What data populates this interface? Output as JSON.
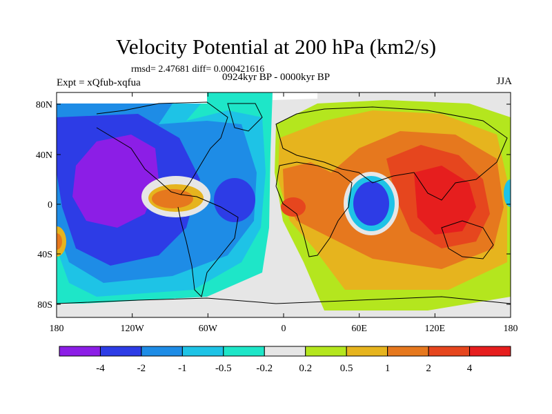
{
  "title": "Velocity Potential at 200 hPa (km2/s)",
  "stats": "rmsd= 2.47681 diff= 0.000421616",
  "experiment": "Expt = xQfub-xqfua",
  "period": "0924kyr BP - 0000kyr BP",
  "season": "JJA",
  "lat_ticks": [
    "80N",
    "40N",
    "0",
    "40S",
    "80S"
  ],
  "lon_ticks": [
    "180",
    "120W",
    "60W",
    "0",
    "60E",
    "120E",
    "180"
  ],
  "colorbar": {
    "labels": [
      "-4",
      "-2",
      "-1",
      "-0.5",
      "-0.2",
      "0.2",
      "0.5",
      "1",
      "2",
      "4"
    ],
    "colors": [
      "#8c1ee6",
      "#2d3ce6",
      "#1e8ce6",
      "#1ec3e6",
      "#1ee6c8",
      "#e6e6e6",
      "#b4e61e",
      "#e6b41e",
      "#e6781e",
      "#e6461e",
      "#e61e1e"
    ]
  },
  "colors": {
    "missing": "#ffffff",
    "coast": "#000000"
  }
}
